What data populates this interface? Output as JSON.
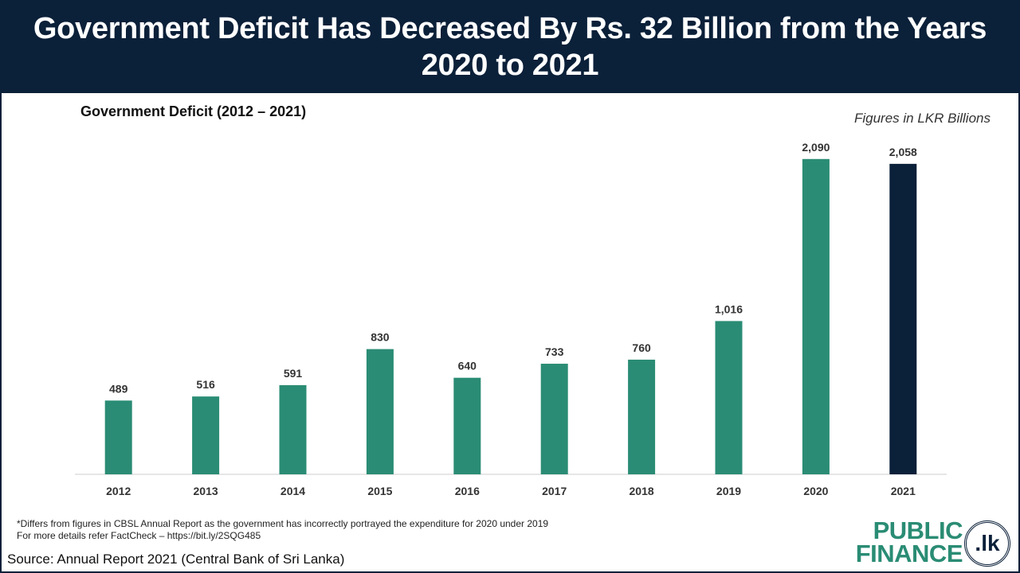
{
  "header": {
    "title": "Government Deficit Has Decreased By Rs. 32 Billion from the Years 2020 to 2021"
  },
  "chart_title": "Government  Deficit  (2012 – 2021)",
  "units_note": "Figures in LKR Billions",
  "chart_data": {
    "type": "bar",
    "categories": [
      "2012",
      "2013",
      "2014",
      "2015",
      "2016",
      "2017",
      "2018",
      "2019",
      "2020",
      "2021"
    ],
    "values": [
      489,
      516,
      591,
      830,
      640,
      733,
      760,
      1016,
      2090,
      2058
    ],
    "value_labels": [
      "489",
      "516",
      "591",
      "830",
      "640",
      "733",
      "760",
      "1,016",
      "2,090",
      "2,058"
    ],
    "title": "Government  Deficit  (2012 – 2021)",
    "ylabel": "",
    "xlabel": "",
    "ylim": [
      0,
      2300
    ],
    "grid": false,
    "colors": {
      "default": "#2a8c74",
      "highlight": "#0b2039",
      "highlight_index": 9
    }
  },
  "footnote": {
    "line1": "*Differs from figures in CBSL Annual Report as the government has incorrectly portrayed the expenditure  for 2020 under 2019",
    "line2": "For more details refer FactCheck – https://bit.ly/2SQG485"
  },
  "source": "Source: Annual Report 2021 (Central Bank of Sri Lanka)",
  "logo": {
    "line1": "PUBLIC",
    "line2": "FINANCE",
    "badge": ".lk",
    "color": "#2a8c74"
  }
}
